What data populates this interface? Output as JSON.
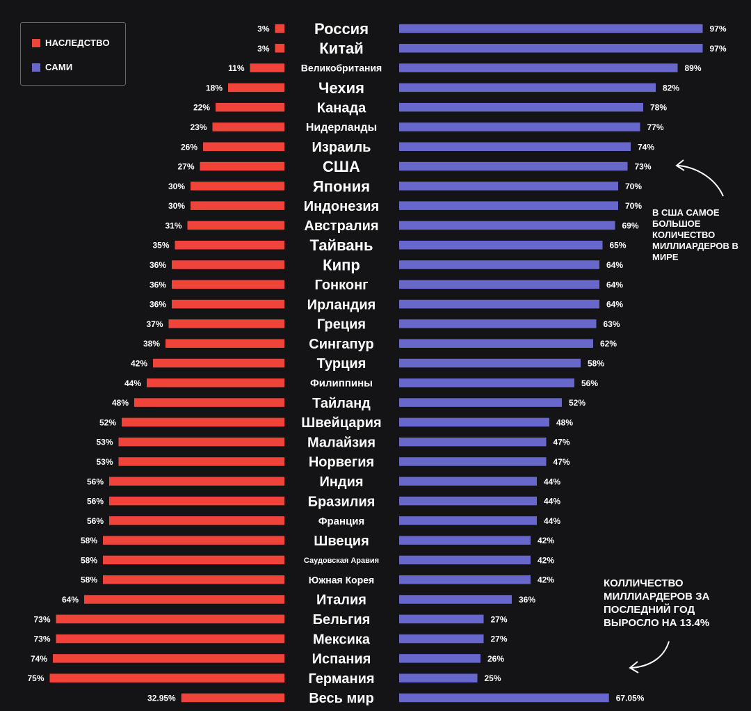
{
  "legend": {
    "inherit_label": "НАСЛЕДСТВО",
    "self_label": "САМИ"
  },
  "annotations": {
    "usa_note": "В США САМОЕ БОЛЬШОЕ КОЛИЧЕСТВО МИЛЛИАРДЕРОВ В МИРЕ",
    "growth_note": "КОЛЛИЧЕСТВО МИЛЛИАРДЕРОВ ЗА ПОСЛЕДНИЙ ГОД ВЫРОСЛО НА 13.4%"
  },
  "colors": {
    "inherit": "#f0443a",
    "self": "#6767cc",
    "background": "#141416"
  },
  "chart_data": {
    "type": "bar",
    "layout": "diverging-horizontal",
    "categories": [
      "Россия",
      "Китай",
      "Великобритания",
      "Чехия",
      "Канада",
      "Нидерланды",
      "Израиль",
      "США",
      "Япония",
      "Индонезия",
      "Австралия",
      "Тайвань",
      "Кипр",
      "Гонконг",
      "Ирландия",
      "Греция",
      "Сингапур",
      "Турция",
      "Филиппины",
      "Тайланд",
      "Швейцария",
      "Малайзия",
      "Норвегия",
      "Индия",
      "Бразилия",
      "Франция",
      "Швеция",
      "Саудовская Аравия",
      "Южная Корея",
      "Италия",
      "Бельгия",
      "Мексика",
      "Испания",
      "Германия",
      "Весь мир"
    ],
    "series": [
      {
        "name": "НАСЛЕДСТВО",
        "color": "#f0443a",
        "values": [
          3,
          3,
          11,
          18,
          22,
          23,
          26,
          27,
          30,
          30,
          31,
          35,
          36,
          36,
          36,
          37,
          38,
          42,
          44,
          48,
          52,
          53,
          53,
          56,
          56,
          56,
          58,
          58,
          58,
          64,
          73,
          73,
          74,
          75,
          32.95
        ],
        "labels": [
          "3%",
          "3%",
          "11%",
          "18%",
          "22%",
          "23%",
          "26%",
          "27%",
          "30%",
          "30%",
          "31%",
          "35%",
          "36%",
          "36%",
          "36%",
          "37%",
          "38%",
          "42%",
          "44%",
          "48%",
          "52%",
          "53%",
          "53%",
          "56%",
          "56%",
          "56%",
          "58%",
          "58%",
          "58%",
          "64%",
          "73%",
          "73%",
          "74%",
          "75%",
          "32.95%"
        ]
      },
      {
        "name": "САМИ",
        "color": "#6767cc",
        "values": [
          97,
          97,
          89,
          82,
          78,
          77,
          74,
          73,
          70,
          70,
          69,
          65,
          64,
          64,
          64,
          63,
          62,
          58,
          56,
          52,
          48,
          47,
          47,
          44,
          44,
          44,
          42,
          42,
          42,
          36,
          27,
          27,
          26,
          25,
          67.05
        ],
        "labels": [
          "97%",
          "97%",
          "89%",
          "82%",
          "78%",
          "77%",
          "74%",
          "73%",
          "70%",
          "70%",
          "69%",
          "65%",
          "64%",
          "64%",
          "64%",
          "63%",
          "62%",
          "58%",
          "56%",
          "52%",
          "48%",
          "47%",
          "47%",
          "44%",
          "44%",
          "44%",
          "42%",
          "42%",
          "42%",
          "36%",
          "27%",
          "27%",
          "26%",
          "25%",
          "67.05%"
        ]
      }
    ],
    "xlim": [
      0,
      100
    ],
    "grid": false,
    "legend_position": "top-left"
  }
}
